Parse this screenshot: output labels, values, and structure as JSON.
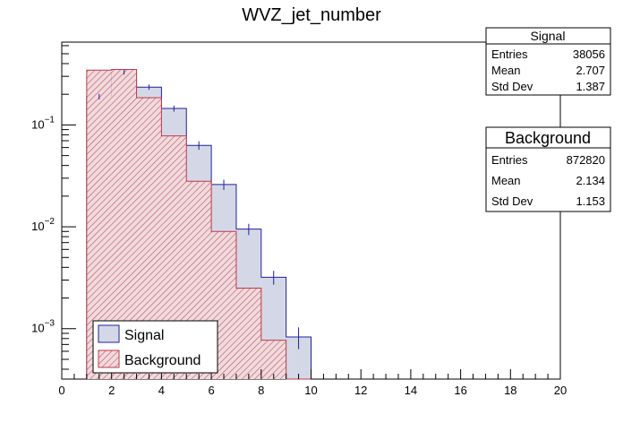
{
  "chart_data": {
    "type": "histogram",
    "title": "WVZ_jet_number",
    "xlabel": "",
    "ylabel": "",
    "x_range": [
      0,
      20
    ],
    "y_scale": "log",
    "y_range": [
      0.00032,
      0.65
    ],
    "bin_edges": [
      1,
      2,
      3,
      4,
      5,
      6,
      7,
      8,
      9,
      10
    ],
    "x_ticks": [
      "0",
      "2",
      "4",
      "6",
      "8",
      "10",
      "12",
      "14",
      "16",
      "18",
      "20"
    ],
    "y_tick_labels": [
      {
        "value": 0.1,
        "base": "10",
        "exp": "−1"
      },
      {
        "value": 0.01,
        "base": "10",
        "exp": "−2"
      },
      {
        "value": 0.001,
        "base": "10",
        "exp": "−3"
      }
    ],
    "series": [
      {
        "name": "Signal",
        "color": "#1f1f9e",
        "fill": "#d4d8e6",
        "values": [
          0.19,
          0.33,
          0.235,
          0.145,
          0.063,
          0.026,
          0.0095,
          0.0032,
          0.00083
        ],
        "errors": [
          0.012,
          0.018,
          0.014,
          0.01,
          0.006,
          0.003,
          0.0012,
          0.0005,
          0.0002
        ]
      },
      {
        "name": "Background",
        "color": "#c03a4a",
        "fill": "#e9c6ca",
        "values": [
          0.345,
          0.35,
          0.185,
          0.078,
          0.028,
          0.009,
          0.0025,
          0.00077,
          0.0
        ],
        "errors": [
          0.003,
          0.003,
          0.002,
          0.001,
          0.0005,
          0.0002,
          0.0001,
          5e-05,
          0.0
        ]
      }
    ],
    "legend": {
      "position": "bottom-left",
      "entries": [
        "Signal",
        "Background"
      ]
    },
    "stats_boxes": [
      {
        "name": "Signal",
        "rows": [
          {
            "label": "Entries",
            "value": "38056"
          },
          {
            "label": "Mean",
            "value": "2.707"
          },
          {
            "label": "Std Dev",
            "value": "1.387"
          }
        ]
      },
      {
        "name": "Background",
        "rows": [
          {
            "label": "Entries",
            "value": "872820"
          },
          {
            "label": "Mean",
            "value": "2.134"
          },
          {
            "label": "Std Dev",
            "value": "1.153"
          }
        ]
      }
    ]
  }
}
